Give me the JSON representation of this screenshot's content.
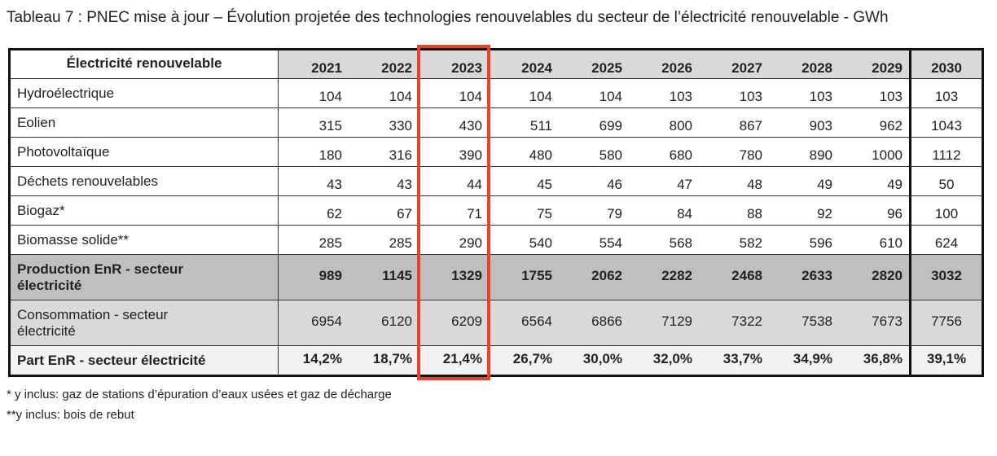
{
  "title": "Tableau 7 : PNEC mise à jour – Évolution projetée des technologies renouvelables du secteur de l’électricité renouvelable - GWh",
  "table": {
    "header_label": "Électricité renouvelable",
    "years": [
      "2021",
      "2022",
      "2023",
      "2024",
      "2025",
      "2026",
      "2027",
      "2028",
      "2029",
      "2030"
    ],
    "highlighted_year": "2023",
    "highlight_color": "#e8412c",
    "rows": [
      {
        "label": "Hydroélectrique",
        "values": [
          "104",
          "104",
          "104",
          "104",
          "104",
          "103",
          "103",
          "103",
          "103",
          "103"
        ]
      },
      {
        "label": "Eolien",
        "values": [
          "315",
          "330",
          "430",
          "511",
          "699",
          "800",
          "867",
          "903",
          "962",
          "1043"
        ]
      },
      {
        "label": "Photovoltaïque",
        "values": [
          "180",
          "316",
          "390",
          "480",
          "580",
          "680",
          "780",
          "890",
          "1000",
          "1112"
        ]
      },
      {
        "label": "Déchets renouvelables",
        "values": [
          "43",
          "43",
          "44",
          "45",
          "46",
          "47",
          "48",
          "49",
          "49",
          "50"
        ]
      },
      {
        "label": "Biogaz*",
        "values": [
          "62",
          "67",
          "71",
          "75",
          "79",
          "84",
          "88",
          "92",
          "96",
          "100"
        ]
      },
      {
        "label": "Biomasse solide**",
        "values": [
          "285",
          "285",
          "290",
          "540",
          "554",
          "568",
          "582",
          "596",
          "610",
          "624"
        ]
      },
      {
        "label": "Production EnR - secteur électricité",
        "values": [
          "989",
          "1145",
          "1329",
          "1755",
          "2062",
          "2282",
          "2468",
          "2633",
          "2820",
          "3032"
        ]
      },
      {
        "label": "Consommation - secteur électricité",
        "values": [
          "6954",
          "6120",
          "6209",
          "6564",
          "6866",
          "7129",
          "7322",
          "7538",
          "7673",
          "7756"
        ]
      },
      {
        "label": "Part EnR - secteur électricité",
        "values": [
          "14,2%",
          "18,7%",
          "21,4%",
          "26,7%",
          "30,0%",
          "32,0%",
          "33,7%",
          "34,9%",
          "36,8%",
          "39,1%"
        ]
      }
    ]
  },
  "footnotes": [
    "* y inclus: gaz de stations d’épuration d’eaux usées et gaz de décharge",
    "**y inclus: bois de rebut"
  ]
}
